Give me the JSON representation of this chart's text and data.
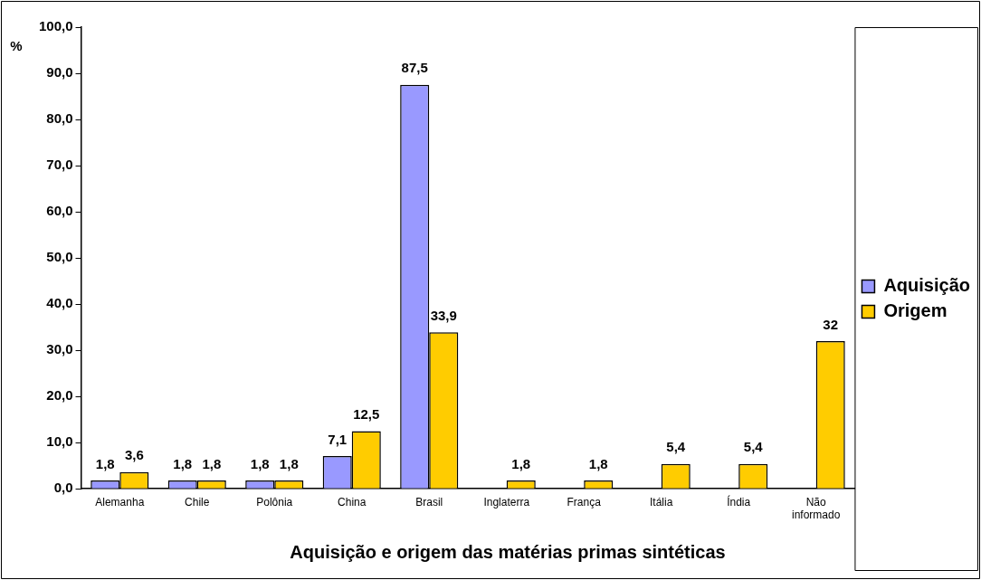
{
  "chart_data": {
    "type": "bar",
    "title": "Aquisição e origem das matérias primas sintéticas",
    "ylabel": "%",
    "categories": [
      "Alemanha",
      "Chile",
      "Polônia",
      "China",
      "Brasil",
      "Inglaterra",
      "França",
      "Itália",
      "Índia",
      "Não informado"
    ],
    "series": [
      {
        "name": "Aquisição",
        "color": "#9999ff",
        "values": [
          1.8,
          1.8,
          1.8,
          7.1,
          87.5,
          null,
          null,
          null,
          null,
          null
        ],
        "value_labels": [
          "1,8",
          "1,8",
          "1,8",
          "7,1",
          "87,5",
          null,
          null,
          null,
          null,
          null
        ]
      },
      {
        "name": "Origem",
        "color": "#ffcc00",
        "values": [
          3.6,
          1.8,
          1.8,
          12.5,
          33.9,
          1.8,
          1.8,
          5.4,
          5.4,
          32
        ],
        "value_labels": [
          "3,6",
          "1,8",
          "1,8",
          "12,5",
          "33,9",
          "1,8",
          "1,8",
          "5,4",
          "5,4",
          "32"
        ]
      }
    ],
    "ylim": [
      0,
      100
    ],
    "yticks": [
      {
        "value": 0,
        "label": "0,0"
      },
      {
        "value": 10,
        "label": "10,0"
      },
      {
        "value": 20,
        "label": "20,0"
      },
      {
        "value": 30,
        "label": "30,0"
      },
      {
        "value": 40,
        "label": "40,0"
      },
      {
        "value": 50,
        "label": "50,0"
      },
      {
        "value": 60,
        "label": "60,0"
      },
      {
        "value": 70,
        "label": "70,0"
      },
      {
        "value": 80,
        "label": "80,0"
      },
      {
        "value": 90,
        "label": "90,0"
      },
      {
        "value": 100,
        "label": "100,0"
      }
    ],
    "grid": false,
    "legend": "right"
  }
}
